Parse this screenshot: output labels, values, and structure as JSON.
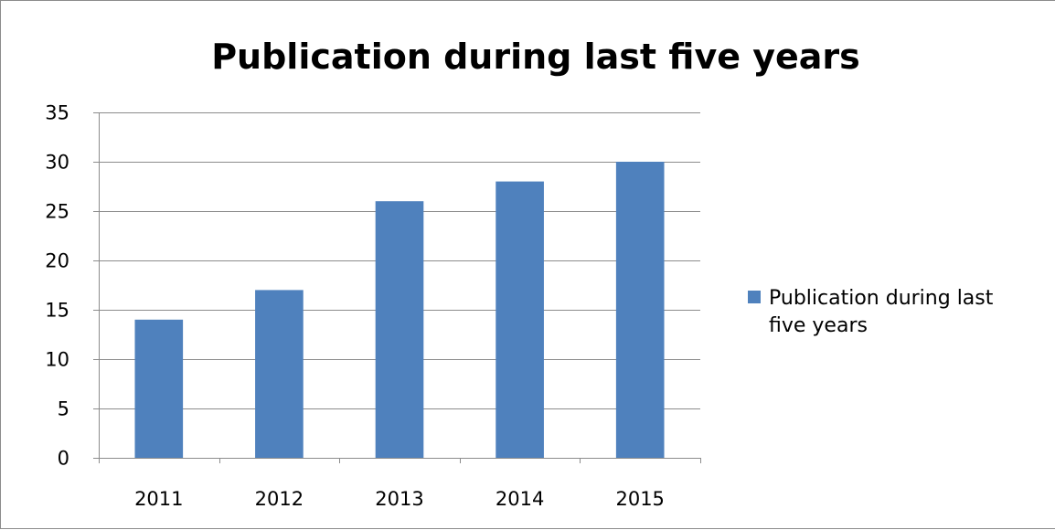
{
  "chart_data": {
    "type": "bar",
    "title": "Publication during last five years",
    "categories": [
      "2011",
      "2012",
      "2013",
      "2014",
      "2015"
    ],
    "series": [
      {
        "name": "Publication during last five years",
        "values": [
          14,
          17,
          26,
          28,
          30
        ],
        "color": "#4f81bd"
      }
    ],
    "xlabel": "",
    "ylabel": "",
    "ylim": [
      0,
      35
    ],
    "yticks": [
      0,
      5,
      10,
      15,
      20,
      25,
      30,
      35
    ],
    "grid": true,
    "legend": {
      "position": "right",
      "lines": [
        "Publication during last",
        "five years"
      ]
    }
  }
}
